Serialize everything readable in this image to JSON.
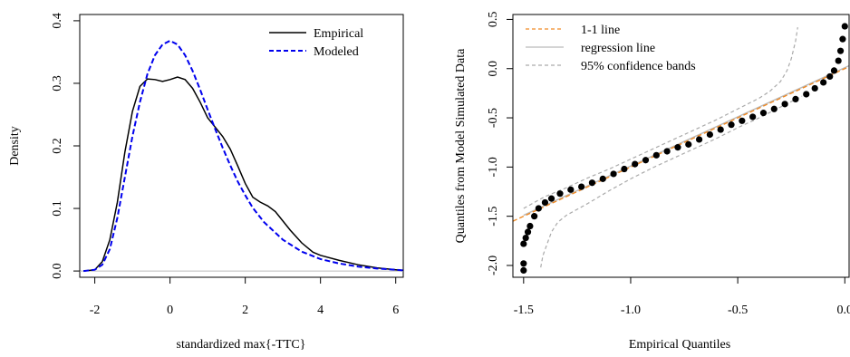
{
  "chart_data": [
    {
      "type": "line",
      "title": "",
      "xlabel": "standardized max{-TTC}",
      "ylabel": "Density",
      "xlim": [
        -2.4,
        6.2
      ],
      "ylim": [
        -0.01,
        0.41
      ],
      "xticks": [
        "-2",
        "0",
        "2",
        "4",
        "6"
      ],
      "yticks": [
        "0.0",
        "0.1",
        "0.2",
        "0.3",
        "0.4"
      ],
      "grid": false,
      "legend_position": "top-right",
      "reference_line": {
        "y": 0,
        "color": "#bbbbbb"
      },
      "series": [
        {
          "name": "Empirical",
          "color": "#000000",
          "dash": "solid",
          "x": [
            -2.3,
            -2.0,
            -1.8,
            -1.6,
            -1.4,
            -1.2,
            -1.0,
            -0.8,
            -0.6,
            -0.4,
            -0.2,
            0.0,
            0.2,
            0.4,
            0.6,
            0.8,
            1.0,
            1.2,
            1.4,
            1.6,
            1.8,
            2.0,
            2.2,
            2.4,
            2.6,
            2.8,
            3.0,
            3.2,
            3.5,
            3.8,
            4.0,
            4.5,
            5.0,
            5.5,
            6.0,
            6.2
          ],
          "y": [
            0.0,
            0.002,
            0.015,
            0.05,
            0.11,
            0.19,
            0.255,
            0.295,
            0.307,
            0.306,
            0.303,
            0.306,
            0.31,
            0.306,
            0.292,
            0.27,
            0.245,
            0.23,
            0.215,
            0.195,
            0.168,
            0.14,
            0.118,
            0.11,
            0.104,
            0.095,
            0.08,
            0.065,
            0.045,
            0.03,
            0.025,
            0.017,
            0.01,
            0.005,
            0.002,
            0.001
          ]
        },
        {
          "name": "Modeled",
          "color": "#0000ee",
          "dash": "dashed",
          "x": [
            -2.3,
            -2.0,
            -1.8,
            -1.6,
            -1.4,
            -1.2,
            -1.0,
            -0.8,
            -0.6,
            -0.4,
            -0.2,
            0.0,
            0.2,
            0.4,
            0.6,
            0.8,
            1.0,
            1.2,
            1.4,
            1.6,
            1.8,
            2.0,
            2.2,
            2.5,
            3.0,
            3.5,
            4.0,
            4.5,
            5.0,
            5.5,
            6.0,
            6.2
          ],
          "y": [
            0.0,
            0.002,
            0.01,
            0.035,
            0.085,
            0.15,
            0.215,
            0.27,
            0.315,
            0.345,
            0.362,
            0.368,
            0.362,
            0.345,
            0.32,
            0.29,
            0.258,
            0.227,
            0.197,
            0.169,
            0.143,
            0.121,
            0.101,
            0.078,
            0.05,
            0.031,
            0.019,
            0.012,
            0.007,
            0.004,
            0.002,
            0.001
          ]
        }
      ]
    },
    {
      "type": "scatter",
      "title": "",
      "xlabel": "Empirical Quantiles",
      "ylabel": "Quantiles from Model Simulated Data",
      "xlim": [
        -1.55,
        0.02
      ],
      "ylim": [
        -2.12,
        0.55
      ],
      "xticks": [
        "-1.5",
        "-1.0",
        "-0.5",
        "0.0"
      ],
      "yticks": [
        "-2.0",
        "-1.5",
        "-1.0",
        "-0.5",
        "0.0",
        "0.5"
      ],
      "grid": false,
      "legend_position": "top-left",
      "legend": [
        {
          "label": "1-1 line",
          "color": "#f08a24",
          "dash": "dashed"
        },
        {
          "label": "regression line",
          "color": "#bbbbbb",
          "dash": "solid"
        },
        {
          "label": "95% confidence bands",
          "color": "#aaaaaa",
          "dash": "dashed"
        }
      ],
      "points": {
        "color": "#000000",
        "x": [
          -1.5,
          -1.5,
          -1.5,
          -1.49,
          -1.48,
          -1.47,
          -1.45,
          -1.43,
          -1.4,
          -1.37,
          -1.33,
          -1.28,
          -1.23,
          -1.18,
          -1.13,
          -1.08,
          -1.03,
          -0.98,
          -0.93,
          -0.88,
          -0.83,
          -0.78,
          -0.73,
          -0.68,
          -0.63,
          -0.58,
          -0.53,
          -0.48,
          -0.43,
          -0.38,
          -0.33,
          -0.28,
          -0.23,
          -0.18,
          -0.14,
          -0.1,
          -0.07,
          -0.05,
          -0.03,
          -0.02,
          -0.01,
          0.0
        ],
        "y": [
          -2.05,
          -1.98,
          -1.78,
          -1.72,
          -1.66,
          -1.6,
          -1.5,
          -1.42,
          -1.36,
          -1.32,
          -1.27,
          -1.23,
          -1.2,
          -1.16,
          -1.12,
          -1.07,
          -1.02,
          -0.97,
          -0.93,
          -0.88,
          -0.84,
          -0.8,
          -0.77,
          -0.72,
          -0.67,
          -0.62,
          -0.57,
          -0.53,
          -0.49,
          -0.45,
          -0.41,
          -0.36,
          -0.31,
          -0.26,
          -0.2,
          -0.14,
          -0.08,
          -0.02,
          0.08,
          0.18,
          0.3,
          0.43
        ]
      },
      "one_to_one_line": {
        "x": [
          -1.55,
          0.02
        ],
        "y": [
          -1.55,
          0.02
        ]
      },
      "regression_line": {
        "x": [
          -1.5,
          0.02
        ],
        "y": [
          -1.49,
          0.03
        ]
      },
      "confidence_bands": {
        "upper": {
          "x": [
            -1.5,
            -1.4,
            -1.3,
            -1.2,
            -1.1,
            -1.0,
            -0.9,
            -0.8,
            -0.7,
            -0.6,
            -0.5,
            -0.4,
            -0.35,
            -0.3,
            -0.27,
            -0.25,
            -0.23,
            -0.22
          ],
          "y": [
            -1.42,
            -1.3,
            -1.21,
            -1.11,
            -1.02,
            -0.92,
            -0.82,
            -0.72,
            -0.62,
            -0.52,
            -0.41,
            -0.3,
            -0.23,
            -0.13,
            -0.02,
            0.1,
            0.28,
            0.42
          ]
        },
        "lower": {
          "x": [
            -1.42,
            -1.41,
            -1.39,
            -1.37,
            -1.34,
            -1.3,
            -1.2,
            -1.1,
            -1.0,
            -0.9,
            -0.8,
            -0.7,
            -0.6,
            -0.5,
            -0.4,
            -0.3,
            -0.2
          ],
          "y": [
            -2.02,
            -1.9,
            -1.78,
            -1.66,
            -1.56,
            -1.49,
            -1.37,
            -1.24,
            -1.12,
            -1.01,
            -0.91,
            -0.81,
            -0.71,
            -0.6,
            -0.5,
            -0.39,
            -0.28
          ]
        }
      }
    }
  ]
}
